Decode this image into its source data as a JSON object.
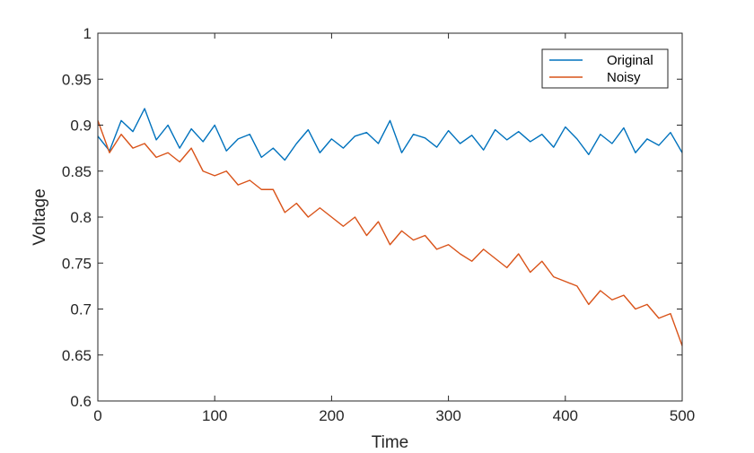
{
  "chart_data": {
    "type": "line",
    "xlabel": "Time",
    "ylabel": "Voltage",
    "xlim": [
      0,
      500
    ],
    "ylim": [
      0.6,
      1.0
    ],
    "xticks": [
      "0",
      "100",
      "200",
      "300",
      "400",
      "500"
    ],
    "yticks": [
      "0.6",
      "0.65",
      "0.7",
      "0.75",
      "0.8",
      "0.85",
      "0.9",
      "0.95",
      "1"
    ],
    "grid": false,
    "legend_position": "top-right",
    "series": [
      {
        "name": "Original",
        "color": "#0072BD",
        "x": [
          0,
          10,
          20,
          30,
          40,
          50,
          60,
          70,
          80,
          90,
          100,
          110,
          120,
          130,
          140,
          150,
          160,
          170,
          180,
          190,
          200,
          210,
          220,
          230,
          240,
          250,
          260,
          270,
          280,
          290,
          300,
          310,
          320,
          330,
          340,
          350,
          360,
          370,
          380,
          390,
          400,
          410,
          420,
          430,
          440,
          450,
          460,
          470,
          480,
          490,
          500
        ],
        "y": [
          0.888,
          0.872,
          0.905,
          0.893,
          0.918,
          0.884,
          0.9,
          0.875,
          0.896,
          0.882,
          0.9,
          0.872,
          0.885,
          0.89,
          0.865,
          0.875,
          0.862,
          0.88,
          0.895,
          0.87,
          0.885,
          0.875,
          0.888,
          0.892,
          0.88,
          0.905,
          0.87,
          0.89,
          0.886,
          0.876,
          0.894,
          0.88,
          0.889,
          0.873,
          0.895,
          0.884,
          0.893,
          0.882,
          0.89,
          0.876,
          0.898,
          0.885,
          0.868,
          0.89,
          0.88,
          0.897,
          0.87,
          0.885,
          0.878,
          0.892,
          0.87
        ]
      },
      {
        "name": "Noisy",
        "color": "#D95319",
        "x": [
          0,
          10,
          20,
          30,
          40,
          50,
          60,
          70,
          80,
          90,
          100,
          110,
          120,
          130,
          140,
          150,
          160,
          170,
          180,
          190,
          200,
          210,
          220,
          230,
          240,
          250,
          260,
          270,
          280,
          290,
          300,
          310,
          320,
          330,
          340,
          350,
          360,
          370,
          380,
          390,
          400,
          410,
          420,
          430,
          440,
          450,
          460,
          470,
          480,
          490,
          500
        ],
        "y": [
          0.905,
          0.87,
          0.89,
          0.875,
          0.88,
          0.865,
          0.87,
          0.86,
          0.875,
          0.85,
          0.845,
          0.85,
          0.835,
          0.84,
          0.83,
          0.83,
          0.805,
          0.815,
          0.8,
          0.81,
          0.8,
          0.79,
          0.8,
          0.78,
          0.795,
          0.77,
          0.785,
          0.775,
          0.78,
          0.765,
          0.77,
          0.76,
          0.752,
          0.765,
          0.755,
          0.745,
          0.76,
          0.74,
          0.752,
          0.735,
          0.73,
          0.725,
          0.705,
          0.72,
          0.71,
          0.715,
          0.7,
          0.705,
          0.69,
          0.695,
          0.66
        ]
      }
    ]
  }
}
